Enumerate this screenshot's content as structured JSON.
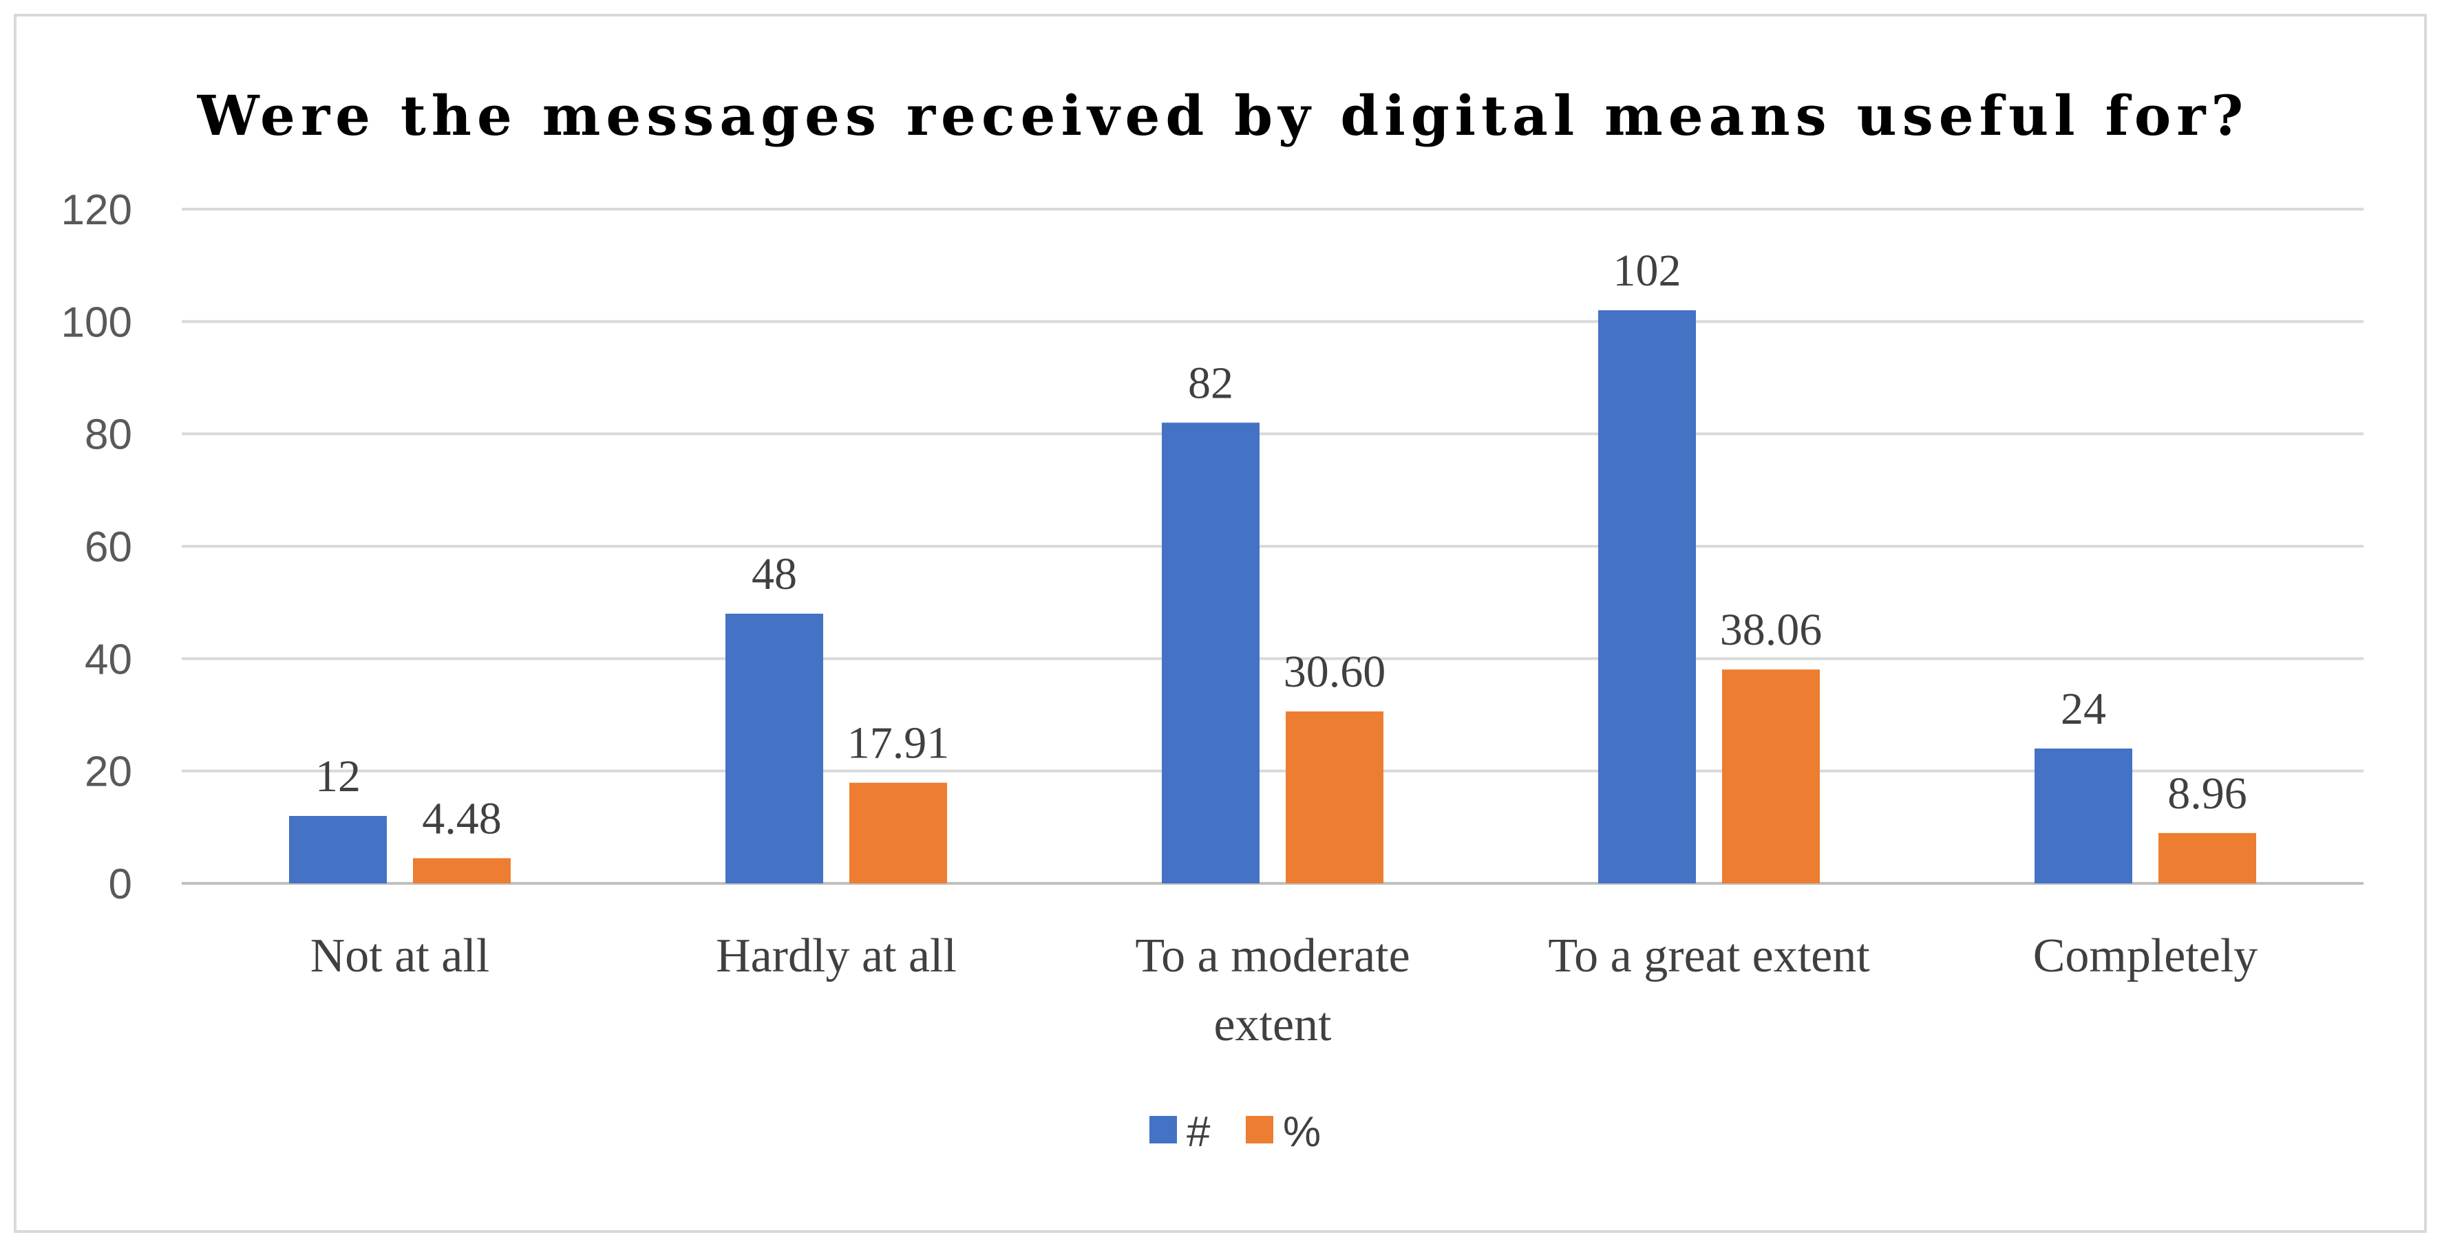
{
  "chart_data": {
    "type": "bar",
    "title": "Were the messages received by digital means useful for?",
    "categories": [
      [
        "Not at all"
      ],
      [
        "Hardly at all"
      ],
      [
        "To a moderate",
        "extent"
      ],
      [
        "To a great extent"
      ],
      [
        "Completely"
      ]
    ],
    "series": [
      {
        "name": "#",
        "color": "#4472c4",
        "values": [
          12,
          48,
          82,
          102,
          24
        ],
        "labels": [
          "12",
          "48",
          "82",
          "102",
          "24"
        ]
      },
      {
        "name": "%",
        "color": "#ed7d31",
        "values": [
          4.48,
          17.91,
          30.6,
          38.06,
          8.96
        ],
        "labels": [
          "4.48",
          "17.91",
          "30.60",
          "38.06",
          "8.96"
        ]
      }
    ],
    "y_ticks": [
      "0",
      "20",
      "40",
      "60",
      "80",
      "100",
      "120"
    ],
    "ylim": [
      0,
      120
    ],
    "grid": true,
    "legend_position": "bottom",
    "xlabel": "",
    "ylabel": ""
  }
}
